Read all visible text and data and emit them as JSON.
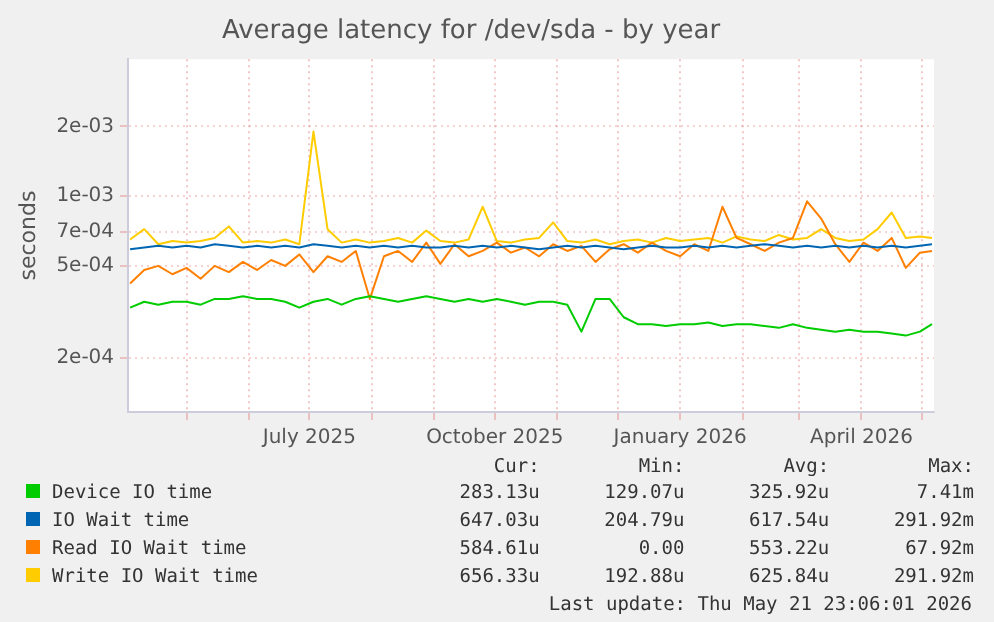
{
  "chart_data": {
    "type": "line",
    "title": "Average latency for /dev/sda - by year",
    "ylabel": "seconds",
    "x": [
      "2025-04-03",
      "2025-04-10",
      "2025-04-17",
      "2025-04-24",
      "2025-05-01",
      "2025-05-08",
      "2025-05-15",
      "2025-05-22",
      "2025-05-29",
      "2025-06-05",
      "2025-06-12",
      "2025-06-19",
      "2025-06-26",
      "2025-07-03",
      "2025-07-10",
      "2025-07-17",
      "2025-07-24",
      "2025-07-31",
      "2025-08-07",
      "2025-08-14",
      "2025-08-21",
      "2025-08-28",
      "2025-09-04",
      "2025-09-11",
      "2025-09-18",
      "2025-09-25",
      "2025-10-02",
      "2025-10-09",
      "2025-10-16",
      "2025-10-23",
      "2025-10-30",
      "2025-11-06",
      "2025-11-13",
      "2025-11-20",
      "2025-11-27",
      "2025-12-04",
      "2025-12-11",
      "2025-12-18",
      "2025-12-25",
      "2026-01-01",
      "2026-01-08",
      "2026-01-15",
      "2026-01-22",
      "2026-01-29",
      "2026-02-05",
      "2026-02-12",
      "2026-02-19",
      "2026-02-26",
      "2026-03-05",
      "2026-03-12",
      "2026-03-19",
      "2026-03-26",
      "2026-04-02",
      "2026-04-09",
      "2026-04-16",
      "2026-04-23",
      "2026-04-30",
      "2026-05-06"
    ],
    "series": [
      {
        "name": "Device IO time",
        "color": "#00cc00",
        "values": [
          0.00033,
          0.00035,
          0.00034,
          0.00035,
          0.00035,
          0.00034,
          0.00036,
          0.00036,
          0.00037,
          0.00036,
          0.00036,
          0.00035,
          0.00033,
          0.00035,
          0.00036,
          0.00034,
          0.00036,
          0.00037,
          0.00036,
          0.00035,
          0.00036,
          0.00037,
          0.00036,
          0.00035,
          0.00036,
          0.00035,
          0.00036,
          0.00035,
          0.00034,
          0.00035,
          0.00035,
          0.00034,
          0.00026,
          0.00036,
          0.00036,
          0.0003,
          0.00028,
          0.00028,
          0.000275,
          0.00028,
          0.00028,
          0.000285,
          0.000275,
          0.00028,
          0.00028,
          0.000275,
          0.00027,
          0.00028,
          0.00027,
          0.000265,
          0.00026,
          0.000265,
          0.00026,
          0.00026,
          0.000255,
          0.00025,
          0.00026,
          0.00028
        ]
      },
      {
        "name": "IO Wait time",
        "color": "#0066b3",
        "values": [
          0.00059,
          0.0006,
          0.00061,
          0.0006,
          0.00061,
          0.0006,
          0.00062,
          0.00061,
          0.0006,
          0.00061,
          0.0006,
          0.00061,
          0.0006,
          0.00062,
          0.00061,
          0.0006,
          0.00061,
          0.0006,
          0.00061,
          0.0006,
          0.00061,
          0.0006,
          0.0006,
          0.00061,
          0.0006,
          0.00061,
          0.0006,
          0.00061,
          0.0006,
          0.00059,
          0.0006,
          0.00061,
          0.0006,
          0.00061,
          0.0006,
          0.00059,
          0.0006,
          0.00061,
          0.0006,
          0.0006,
          0.00061,
          0.0006,
          0.00061,
          0.0006,
          0.00061,
          0.00062,
          0.00061,
          0.0006,
          0.00061,
          0.0006,
          0.00061,
          0.0006,
          0.00061,
          0.0006,
          0.00061,
          0.0006,
          0.00061,
          0.00062
        ]
      },
      {
        "name": "Read IO Wait time",
        "color": "#ff8000",
        "values": [
          0.00042,
          0.00048,
          0.0005,
          0.00046,
          0.00049,
          0.00044,
          0.0005,
          0.00047,
          0.00052,
          0.00048,
          0.00053,
          0.0005,
          0.00056,
          0.00047,
          0.00055,
          0.00052,
          0.00058,
          0.00036,
          0.00055,
          0.00058,
          0.00052,
          0.00063,
          0.00051,
          0.00062,
          0.00055,
          0.00058,
          0.00063,
          0.00057,
          0.0006,
          0.00055,
          0.00062,
          0.00058,
          0.00061,
          0.00052,
          0.00059,
          0.00062,
          0.00057,
          0.00063,
          0.00058,
          0.00055,
          0.00062,
          0.00058,
          0.0009,
          0.00066,
          0.00062,
          0.00058,
          0.00063,
          0.00066,
          0.00095,
          0.0008,
          0.00062,
          0.00052,
          0.00063,
          0.00058,
          0.00066,
          0.00049,
          0.00057,
          0.00058
        ]
      },
      {
        "name": "Write IO Wait time",
        "color": "#ffcc00",
        "values": [
          0.00065,
          0.00072,
          0.00062,
          0.00064,
          0.00063,
          0.00064,
          0.00066,
          0.00074,
          0.00063,
          0.00064,
          0.00063,
          0.00065,
          0.00062,
          0.0019,
          0.00072,
          0.00063,
          0.00065,
          0.00063,
          0.00064,
          0.00066,
          0.00063,
          0.00071,
          0.00064,
          0.00063,
          0.00065,
          0.0009,
          0.00064,
          0.00063,
          0.00065,
          0.00066,
          0.00077,
          0.00064,
          0.00063,
          0.00065,
          0.00062,
          0.00064,
          0.00065,
          0.00063,
          0.00066,
          0.00064,
          0.00065,
          0.00066,
          0.00063,
          0.00067,
          0.00065,
          0.00064,
          0.00068,
          0.00065,
          0.00066,
          0.00072,
          0.00066,
          0.00064,
          0.00065,
          0.00072,
          0.00085,
          0.00066,
          0.00067,
          0.00066
        ]
      }
    ],
    "xlim": [
      "2025-04-02",
      "2026-05-07"
    ],
    "xticks": [
      {
        "value": "2025-05-01",
        "label": null
      },
      {
        "value": "2025-06-01",
        "label": null
      },
      {
        "value": "2025-07-01",
        "label": "July 2025"
      },
      {
        "value": "2025-08-01",
        "label": null
      },
      {
        "value": "2025-09-01",
        "label": null
      },
      {
        "value": "2025-10-01",
        "label": "October 2025"
      },
      {
        "value": "2025-11-01",
        "label": null
      },
      {
        "value": "2025-12-01",
        "label": null
      },
      {
        "value": "2026-01-01",
        "label": "January 2026"
      },
      {
        "value": "2026-02-01",
        "label": null
      },
      {
        "value": "2026-03-01",
        "label": null
      },
      {
        "value": "2026-04-01",
        "label": "April 2026"
      },
      {
        "value": "2026-05-01",
        "label": null
      }
    ],
    "ylim": [
      0.000117,
      0.0039
    ],
    "yticks": [
      {
        "value": 0.0002,
        "label": "2e-04"
      },
      {
        "value": 0.0005,
        "label": "5e-04"
      },
      {
        "value": 0.0007,
        "label": "7e-04"
      },
      {
        "value": 0.001,
        "label": "1e-03"
      },
      {
        "value": 0.002,
        "label": "2e-03"
      }
    ],
    "log": "y",
    "grid": true,
    "legend": "bottom",
    "marker": "none",
    "line_style": "solid",
    "annotations": [
      "Cur:",
      "Min:",
      "Avg:",
      "Max:",
      "283.13u",
      "129.07u",
      "325.92u",
      "7.41m",
      "647.03u",
      "204.79u",
      "617.54u",
      "291.92m",
      "584.61u",
      "0.00",
      "553.22u",
      "67.92m",
      "656.33u",
      "192.88u",
      "625.84u",
      "291.92m",
      "Last update: Thu May 21 23:06:01 2026"
    ]
  }
}
